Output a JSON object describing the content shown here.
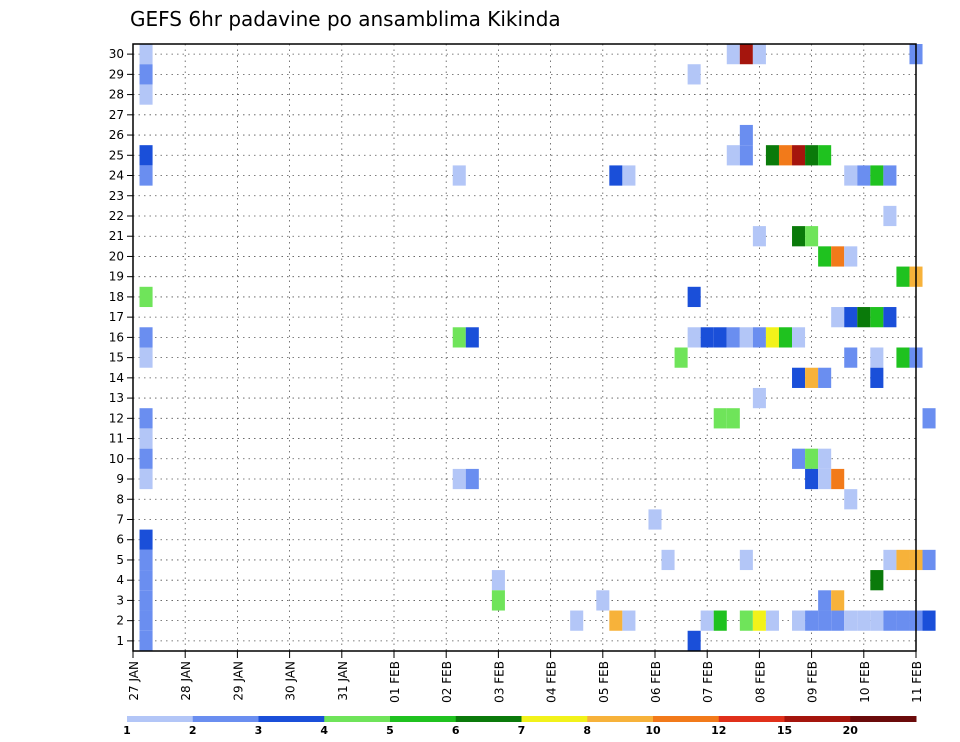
{
  "chart_data": {
    "type": "heatmap",
    "title": "GEFS 6hr padavine po ansamblima Kikinda",
    "xlabel": "",
    "ylabel": "",
    "x_tick_labels": [
      "27 JAN",
      "28 JAN",
      "29 JAN",
      "30 JAN",
      "31 JAN",
      "01 FEB",
      "02 FEB",
      "03 FEB",
      "04 FEB",
      "05 FEB",
      "06 FEB",
      "07 FEB",
      "08 FEB",
      "09 FEB",
      "10 FEB",
      "11 FEB"
    ],
    "y_tick_labels": [
      "1",
      "2",
      "3",
      "4",
      "5",
      "6",
      "7",
      "8",
      "9",
      "10",
      "11",
      "12",
      "13",
      "14",
      "15",
      "16",
      "17",
      "18",
      "19",
      "20",
      "21",
      "22",
      "23",
      "24",
      "25",
      "26",
      "27",
      "28",
      "29",
      "30"
    ],
    "x_range_days": [
      0,
      15
    ],
    "y_range": [
      0.5,
      30.5
    ],
    "grid": true,
    "time_step_hours": 6,
    "legend": {
      "labels": [
        "1",
        "2",
        "3",
        "4",
        "5",
        "6",
        "7",
        "8",
        "10",
        "12",
        "15",
        "20"
      ],
      "colors": [
        "#b3c6f7",
        "#6a8ef0",
        "#1a4fd9",
        "#6fe45a",
        "#1fc21f",
        "#0a7a0a",
        "#f2f21a",
        "#f7b23a",
        "#f27a1a",
        "#e0301a",
        "#a5150d",
        "#6b0a0a"
      ]
    },
    "cells": [
      {
        "m": 30,
        "t": 0.25,
        "c": 0
      },
      {
        "m": 30,
        "t": 11.5,
        "c": 0
      },
      {
        "m": 30,
        "t": 11.75,
        "c": 10
      },
      {
        "m": 30,
        "t": 12.0,
        "c": 0
      },
      {
        "m": 30,
        "t": 15.0,
        "c": 1
      },
      {
        "m": 29,
        "t": 0.25,
        "c": 1
      },
      {
        "m": 29,
        "t": 10.75,
        "c": 0
      },
      {
        "m": 28,
        "t": 0.25,
        "c": 0
      },
      {
        "m": 26,
        "t": 11.75,
        "c": 1
      },
      {
        "m": 25,
        "t": 0.25,
        "c": 2
      },
      {
        "m": 25,
        "t": 11.5,
        "c": 0
      },
      {
        "m": 25,
        "t": 11.75,
        "c": 1
      },
      {
        "m": 25,
        "t": 12.25,
        "c": 5
      },
      {
        "m": 25,
        "t": 12.5,
        "c": 8
      },
      {
        "m": 25,
        "t": 12.75,
        "c": 10
      },
      {
        "m": 25,
        "t": 13.0,
        "c": 5
      },
      {
        "m": 25,
        "t": 13.25,
        "c": 4
      },
      {
        "m": 24,
        "t": 0.25,
        "c": 1
      },
      {
        "m": 24,
        "t": 6.25,
        "c": 0
      },
      {
        "m": 24,
        "t": 9.25,
        "c": 2
      },
      {
        "m": 24,
        "t": 9.5,
        "c": 0
      },
      {
        "m": 24,
        "t": 13.75,
        "c": 0
      },
      {
        "m": 24,
        "t": 14.0,
        "c": 1
      },
      {
        "m": 24,
        "t": 14.25,
        "c": 4
      },
      {
        "m": 24,
        "t": 14.5,
        "c": 1
      },
      {
        "m": 22,
        "t": 14.5,
        "c": 0
      },
      {
        "m": 21,
        "t": 12.0,
        "c": 0
      },
      {
        "m": 21,
        "t": 12.75,
        "c": 5
      },
      {
        "m": 21,
        "t": 13.0,
        "c": 3
      },
      {
        "m": 20,
        "t": 13.25,
        "c": 4
      },
      {
        "m": 20,
        "t": 13.5,
        "c": 8
      },
      {
        "m": 20,
        "t": 13.75,
        "c": 0
      },
      {
        "m": 19,
        "t": 14.75,
        "c": 4
      },
      {
        "m": 19,
        "t": 15.0,
        "c": 7
      },
      {
        "m": 18,
        "t": 0.25,
        "c": 3
      },
      {
        "m": 18,
        "t": 10.75,
        "c": 2
      },
      {
        "m": 17,
        "t": 13.5,
        "c": 0
      },
      {
        "m": 17,
        "t": 13.75,
        "c": 2
      },
      {
        "m": 17,
        "t": 14.0,
        "c": 5
      },
      {
        "m": 17,
        "t": 14.25,
        "c": 4
      },
      {
        "m": 17,
        "t": 14.5,
        "c": 2
      },
      {
        "m": 16,
        "t": 0.25,
        "c": 1
      },
      {
        "m": 16,
        "t": 6.25,
        "c": 3
      },
      {
        "m": 16,
        "t": 6.5,
        "c": 2
      },
      {
        "m": 16,
        "t": 10.75,
        "c": 0
      },
      {
        "m": 16,
        "t": 11.0,
        "c": 2
      },
      {
        "m": 16,
        "t": 11.25,
        "c": 2
      },
      {
        "m": 16,
        "t": 11.5,
        "c": 1
      },
      {
        "m": 16,
        "t": 11.75,
        "c": 0
      },
      {
        "m": 16,
        "t": 12.0,
        "c": 1
      },
      {
        "m": 16,
        "t": 12.25,
        "c": 6
      },
      {
        "m": 16,
        "t": 12.5,
        "c": 4
      },
      {
        "m": 16,
        "t": 12.75,
        "c": 0
      },
      {
        "m": 15,
        "t": 0.25,
        "c": 0
      },
      {
        "m": 15,
        "t": 10.5,
        "c": 3
      },
      {
        "m": 15,
        "t": 13.75,
        "c": 1
      },
      {
        "m": 15,
        "t": 14.25,
        "c": 0
      },
      {
        "m": 15,
        "t": 14.75,
        "c": 4
      },
      {
        "m": 15,
        "t": 15.0,
        "c": 1
      },
      {
        "m": 14,
        "t": 12.75,
        "c": 2
      },
      {
        "m": 14,
        "t": 13.0,
        "c": 7
      },
      {
        "m": 14,
        "t": 13.25,
        "c": 1
      },
      {
        "m": 14,
        "t": 14.25,
        "c": 2
      },
      {
        "m": 13,
        "t": 12.0,
        "c": 0
      },
      {
        "m": 12,
        "t": 0.25,
        "c": 1
      },
      {
        "m": 12,
        "t": 11.25,
        "c": 3
      },
      {
        "m": 12,
        "t": 11.5,
        "c": 3
      },
      {
        "m": 12,
        "t": 15.25,
        "c": 1
      },
      {
        "m": 11,
        "t": 0.25,
        "c": 0
      },
      {
        "m": 10,
        "t": 0.25,
        "c": 1
      },
      {
        "m": 10,
        "t": 12.75,
        "c": 1
      },
      {
        "m": 10,
        "t": 13.0,
        "c": 3
      },
      {
        "m": 10,
        "t": 13.25,
        "c": 0
      },
      {
        "m": 9,
        "t": 0.25,
        "c": 0
      },
      {
        "m": 9,
        "t": 6.25,
        "c": 0
      },
      {
        "m": 9,
        "t": 6.5,
        "c": 1
      },
      {
        "m": 9,
        "t": 13.0,
        "c": 2
      },
      {
        "m": 9,
        "t": 13.25,
        "c": 0
      },
      {
        "m": 9,
        "t": 13.5,
        "c": 8
      },
      {
        "m": 8,
        "t": 13.75,
        "c": 0
      },
      {
        "m": 7,
        "t": 10.0,
        "c": 0
      },
      {
        "m": 6,
        "t": 0.25,
        "c": 2
      },
      {
        "m": 5,
        "t": 0.25,
        "c": 1
      },
      {
        "m": 5,
        "t": 10.25,
        "c": 0
      },
      {
        "m": 5,
        "t": 11.75,
        "c": 0
      },
      {
        "m": 5,
        "t": 14.5,
        "c": 0
      },
      {
        "m": 5,
        "t": 14.75,
        "c": 7
      },
      {
        "m": 5,
        "t": 15.0,
        "c": 7
      },
      {
        "m": 5,
        "t": 15.25,
        "c": 1
      },
      {
        "m": 4,
        "t": 0.25,
        "c": 1
      },
      {
        "m": 4,
        "t": 7.0,
        "c": 0
      },
      {
        "m": 4,
        "t": 14.25,
        "c": 5
      },
      {
        "m": 3,
        "t": 0.25,
        "c": 1
      },
      {
        "m": 3,
        "t": 7.0,
        "c": 3
      },
      {
        "m": 3,
        "t": 9.0,
        "c": 0
      },
      {
        "m": 3,
        "t": 13.25,
        "c": 1
      },
      {
        "m": 3,
        "t": 13.5,
        "c": 7
      },
      {
        "m": 2,
        "t": 0.25,
        "c": 1
      },
      {
        "m": 2,
        "t": 8.5,
        "c": 0
      },
      {
        "m": 2,
        "t": 9.25,
        "c": 7
      },
      {
        "m": 2,
        "t": 9.5,
        "c": 0
      },
      {
        "m": 2,
        "t": 11.0,
        "c": 0
      },
      {
        "m": 2,
        "t": 11.25,
        "c": 4
      },
      {
        "m": 2,
        "t": 11.75,
        "c": 3
      },
      {
        "m": 2,
        "t": 12.0,
        "c": 6
      },
      {
        "m": 2,
        "t": 12.25,
        "c": 0
      },
      {
        "m": 2,
        "t": 12.75,
        "c": 0
      },
      {
        "m": 2,
        "t": 13.0,
        "c": 1
      },
      {
        "m": 2,
        "t": 13.25,
        "c": 1
      },
      {
        "m": 2,
        "t": 13.5,
        "c": 1
      },
      {
        "m": 2,
        "t": 13.75,
        "c": 0
      },
      {
        "m": 2,
        "t": 14.0,
        "c": 0
      },
      {
        "m": 2,
        "t": 14.25,
        "c": 0
      },
      {
        "m": 2,
        "t": 14.5,
        "c": 1
      },
      {
        "m": 2,
        "t": 14.75,
        "c": 1
      },
      {
        "m": 2,
        "t": 15.0,
        "c": 1
      },
      {
        "m": 2,
        "t": 15.25,
        "c": 2
      },
      {
        "m": 1,
        "t": 0.25,
        "c": 1
      },
      {
        "m": 1,
        "t": 10.75,
        "c": 2
      }
    ]
  }
}
